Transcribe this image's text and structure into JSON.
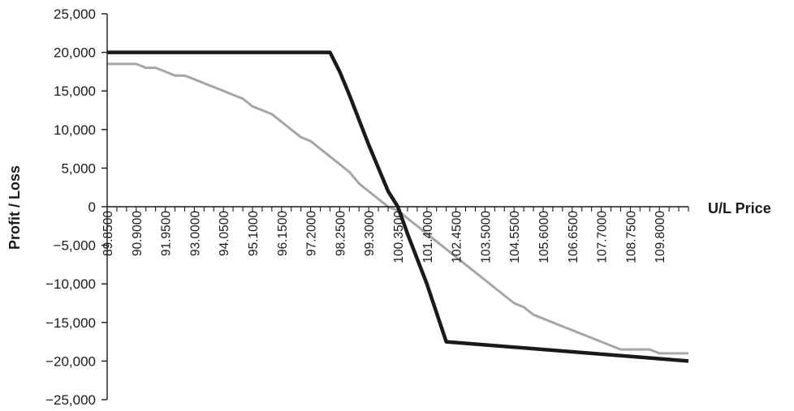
{
  "chart_data": {
    "type": "line",
    "title": "",
    "xlabel": "U/L Price",
    "ylabel": "Profit / Loss",
    "ylim": [
      -25000,
      25000
    ],
    "grid": false,
    "legend": "none",
    "y_ticks": [
      25000,
      20000,
      15000,
      10000,
      5000,
      0,
      -5000,
      -10000,
      -15000,
      -20000,
      -25000
    ],
    "y_tick_labels": [
      "25,000",
      "20,000",
      "15,000",
      "10,000",
      "5,000",
      "0",
      "−5,000",
      "−10,000",
      "−15,000",
      "−20,000",
      "−25,000"
    ],
    "x_ticks": [
      89.85,
      90.9,
      91.95,
      93.0,
      94.05,
      95.1,
      96.15,
      97.2,
      98.25,
      99.3,
      100.35,
      101.4,
      102.45,
      103.5,
      104.55,
      105.6,
      106.65,
      107.7,
      108.75,
      109.8
    ],
    "x_tick_labels": [
      "89.8500",
      "90.9000",
      "91.9500",
      "93.0000",
      "94.0500",
      "95.1000",
      "96.1500",
      "97.2000",
      "98.2500",
      "99.3000",
      "100.3500",
      "101.4000",
      "102.4500",
      "103.5000",
      "104.5500",
      "105.6000",
      "106.6500",
      "107.7000",
      "108.7500",
      "109.8000"
    ],
    "xlim": [
      89.85,
      110.85
    ],
    "series": [
      {
        "color": "#1a1a1a",
        "x": [
          89.85,
          97.9,
          98.25,
          98.6,
          99.3,
          100.0,
          100.35,
          100.7,
          101.4,
          102.1,
          110.85
        ],
        "values": [
          20000,
          20000,
          17500,
          14500,
          8000,
          2000,
          0,
          -3500,
          -10000,
          -17500,
          -20000
        ]
      },
      {
        "color": "#a6a6a6",
        "x": [
          89.85,
          90.2,
          90.55,
          90.9,
          91.25,
          91.6,
          91.95,
          92.3,
          92.65,
          93.0,
          93.35,
          93.7,
          94.05,
          94.4,
          94.75,
          95.1,
          95.45,
          95.8,
          96.15,
          96.5,
          96.85,
          97.2,
          97.55,
          97.9,
          98.25,
          98.6,
          98.95,
          99.3,
          99.65,
          100.0,
          100.35,
          100.7,
          101.05,
          101.4,
          101.75,
          102.1,
          102.45,
          102.8,
          103.15,
          103.5,
          103.85,
          104.2,
          104.55,
          104.9,
          105.25,
          105.6,
          105.95,
          106.3,
          106.65,
          107.0,
          107.35,
          107.7,
          108.05,
          108.4,
          108.75,
          109.1,
          109.45,
          109.8,
          110.15,
          110.5,
          110.85
        ],
        "values": [
          18500,
          18500,
          18500,
          18500,
          18000,
          18000,
          17500,
          17000,
          17000,
          16500,
          16000,
          15500,
          15000,
          14500,
          14000,
          13000,
          12500,
          12000,
          11000,
          10000,
          9000,
          8500,
          7500,
          6500,
          5500,
          4500,
          3000,
          2000,
          1000,
          0,
          -500,
          -1500,
          -2500,
          -3500,
          -4500,
          -5500,
          -6500,
          -7500,
          -8500,
          -9500,
          -10500,
          -11500,
          -12500,
          -13000,
          -14000,
          -14500,
          -15000,
          -15500,
          -16000,
          -16500,
          -17000,
          -17500,
          -18000,
          -18500,
          -18500,
          -18500,
          -18500,
          -19000,
          -19000,
          -19000,
          -19000
        ]
      }
    ]
  }
}
